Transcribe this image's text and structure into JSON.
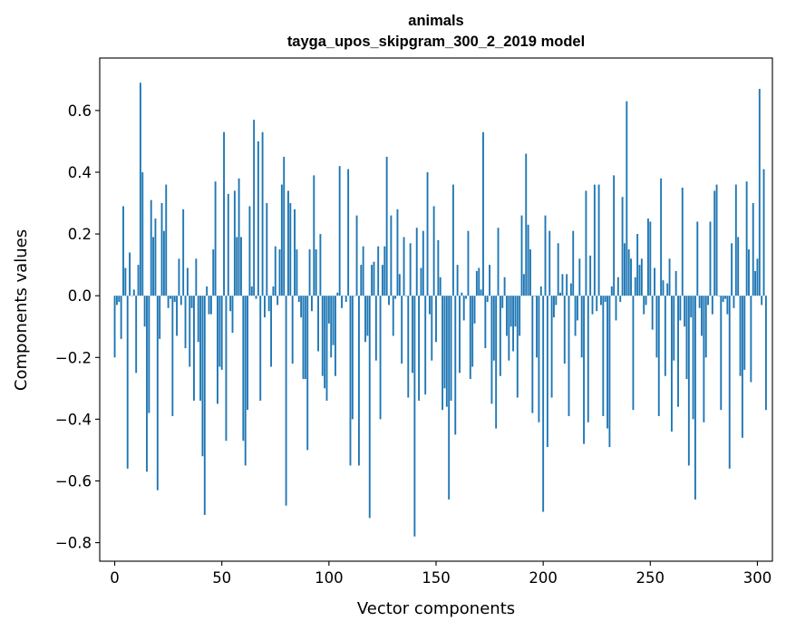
{
  "chart_data": {
    "type": "bar",
    "title": "animals",
    "subtitle": "tayga_upos_skipgram_300_2_2019 model",
    "xlabel": "Vector components",
    "ylabel": "Components values",
    "xlim": [
      -7,
      307
    ],
    "ylim": [
      -0.86,
      0.77
    ],
    "x_ticks": [
      0,
      50,
      100,
      150,
      200,
      250,
      300
    ],
    "x_tick_labels": [
      "0",
      "50",
      "100",
      "150",
      "200",
      "250",
      "300"
    ],
    "y_ticks": [
      -0.8,
      -0.6,
      -0.4,
      -0.2,
      0.0,
      0.2,
      0.4,
      0.6
    ],
    "y_tick_labels": [
      "−0.8",
      "−0.6",
      "−0.4",
      "−0.2",
      "0.0",
      "0.2",
      "0.4",
      "0.6"
    ],
    "bar_color": "#1f77b4",
    "series": [
      {
        "name": "animals",
        "values": [
          -0.2,
          -0.03,
          -0.02,
          -0.14,
          0.29,
          0.09,
          -0.56,
          0.14,
          0.0,
          0.02,
          -0.25,
          0.1,
          0.69,
          0.4,
          -0.1,
          -0.57,
          -0.38,
          0.31,
          0.19,
          0.25,
          -0.63,
          -0.14,
          0.3,
          0.21,
          0.36,
          -0.04,
          -0.01,
          -0.39,
          -0.02,
          -0.13,
          0.12,
          -0.03,
          0.28,
          -0.17,
          0.09,
          -0.23,
          -0.04,
          -0.34,
          0.12,
          -0.15,
          -0.34,
          -0.52,
          -0.71,
          0.03,
          -0.06,
          -0.06,
          0.15,
          0.37,
          -0.35,
          -0.23,
          -0.24,
          0.53,
          -0.47,
          0.33,
          -0.05,
          -0.12,
          0.34,
          0.19,
          0.38,
          0.19,
          -0.47,
          -0.55,
          -0.37,
          0.29,
          0.03,
          0.57,
          -0.01,
          0.5,
          -0.34,
          0.53,
          -0.07,
          0.3,
          -0.05,
          -0.23,
          0.03,
          0.16,
          -0.03,
          0.15,
          0.36,
          0.45,
          -0.68,
          0.34,
          0.3,
          -0.22,
          0.28,
          0.15,
          -0.02,
          -0.07,
          -0.27,
          -0.27,
          -0.5,
          0.15,
          -0.05,
          0.39,
          0.15,
          -0.18,
          0.2,
          -0.26,
          -0.3,
          -0.34,
          -0.09,
          -0.2,
          -0.16,
          -0.26,
          0.01,
          0.42,
          -0.04,
          0.0,
          -0.02,
          0.41,
          -0.55,
          -0.4,
          0.0,
          0.26,
          -0.55,
          0.1,
          0.16,
          -0.15,
          -0.13,
          -0.72,
          0.1,
          0.11,
          -0.21,
          0.16,
          -0.4,
          0.1,
          0.16,
          0.45,
          -0.03,
          0.26,
          -0.13,
          -0.01,
          0.28,
          0.07,
          -0.22,
          0.19,
          0.0,
          -0.33,
          0.17,
          -0.25,
          -0.78,
          0.22,
          -0.34,
          0.09,
          0.21,
          -0.32,
          0.4,
          -0.06,
          -0.21,
          0.29,
          -0.15,
          0.18,
          0.06,
          -0.37,
          -0.3,
          -0.36,
          -0.66,
          -0.34,
          0.36,
          -0.45,
          0.1,
          -0.25,
          0.01,
          -0.08,
          -0.01,
          0.21,
          -0.27,
          -0.23,
          -0.09,
          0.08,
          0.09,
          0.02,
          0.53,
          -0.17,
          -0.02,
          0.1,
          -0.35,
          -0.21,
          -0.43,
          0.22,
          -0.26,
          -0.04,
          0.06,
          -0.13,
          -0.21,
          -0.1,
          -0.18,
          -0.1,
          -0.33,
          -0.13,
          0.26,
          0.07,
          0.46,
          0.23,
          0.15,
          -0.38,
          0.0,
          -0.2,
          -0.41,
          0.03,
          -0.7,
          0.26,
          -0.49,
          0.21,
          -0.33,
          -0.07,
          -0.03,
          0.17,
          0.01,
          0.07,
          -0.22,
          0.07,
          -0.39,
          0.04,
          0.21,
          -0.13,
          -0.08,
          0.12,
          -0.2,
          -0.48,
          0.34,
          -0.41,
          0.13,
          -0.06,
          0.36,
          -0.05,
          0.36,
          -0.03,
          -0.39,
          -0.02,
          -0.43,
          -0.49,
          0.03,
          0.39,
          -0.08,
          0.06,
          -0.02,
          0.32,
          0.17,
          0.63,
          0.15,
          0.12,
          -0.37,
          0.06,
          0.2,
          0.1,
          0.12,
          -0.06,
          -0.03,
          0.25,
          0.24,
          -0.11,
          0.09,
          -0.2,
          -0.39,
          0.38,
          0.05,
          -0.26,
          0.04,
          0.12,
          -0.44,
          -0.21,
          0.08,
          -0.36,
          -0.08,
          0.35,
          -0.1,
          -0.27,
          -0.55,
          -0.07,
          -0.4,
          -0.66,
          0.24,
          -0.04,
          -0.13,
          -0.41,
          -0.2,
          -0.03,
          0.24,
          -0.06,
          0.34,
          0.36,
          0.0,
          -0.37,
          -0.02,
          -0.01,
          -0.06,
          -0.56,
          0.17,
          -0.04,
          0.36,
          0.19,
          -0.26,
          -0.46,
          -0.24,
          0.37,
          0.15,
          -0.28,
          0.3,
          0.08,
          0.12,
          0.67,
          -0.03,
          0.41,
          -0.37
        ]
      }
    ]
  }
}
